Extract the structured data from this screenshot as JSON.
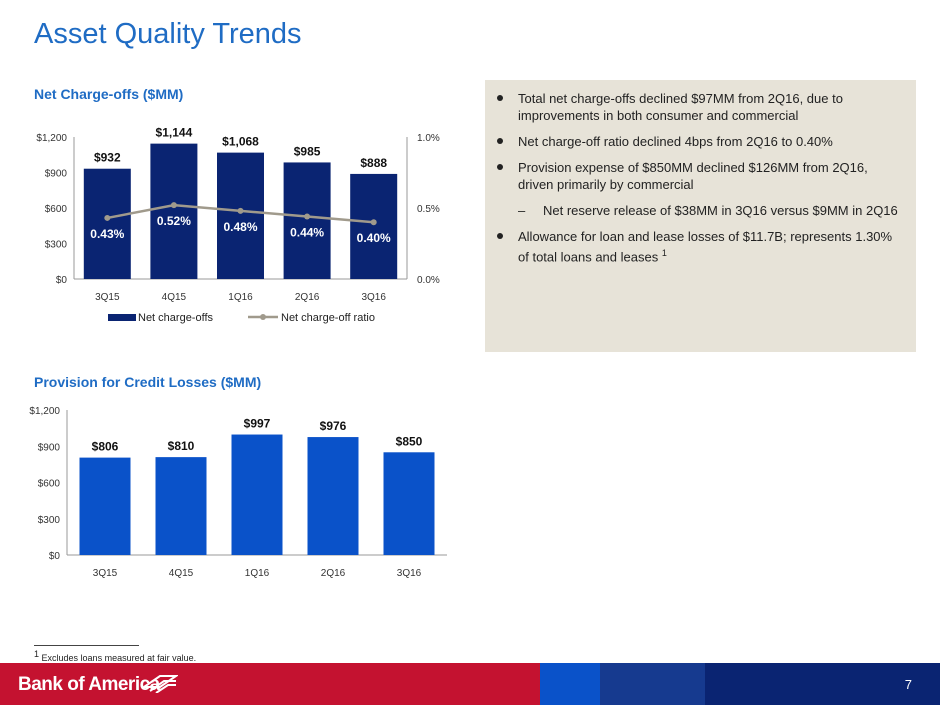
{
  "page": {
    "title": "Asset Quality Trends",
    "page_number": "7"
  },
  "brand": {
    "name": "Bank of America",
    "accent": "#1f6cc4",
    "navy": "#0a2472",
    "blue": "#0a52c9",
    "red": "#c41230",
    "panel": "#e7e3d8"
  },
  "bullets": [
    {
      "text": "Total net charge-offs declined $97MM from 2Q16, due to improvements in both consumer and commercial",
      "level": 1
    },
    {
      "text": "Net charge-off ratio declined 4bps from 2Q16 to 0.40%",
      "level": 1
    },
    {
      "text": "Provision expense of $850MM declined $126MM from 2Q16, driven primarily by commercial",
      "level": 1
    },
    {
      "text": "Net reserve release of $38MM in 3Q16 versus $9MM in 2Q16",
      "level": 2
    },
    {
      "text": "Allowance for loan and lease losses of $11.7B; represents 1.30% of total loans and leases",
      "sup": "1",
      "level": 1
    }
  ],
  "footnote": {
    "marker": "1",
    "text": "Excludes loans measured at fair value."
  },
  "chart_data": [
    {
      "type": "bar",
      "title": "Net Charge-offs ($MM)",
      "categories": [
        "3Q15",
        "4Q15",
        "1Q16",
        "2Q16",
        "3Q16"
      ],
      "series": [
        {
          "name": "Net charge-offs",
          "kind": "bar",
          "axis": "left",
          "values": [
            932,
            1144,
            1068,
            985,
            888
          ],
          "labels": [
            "$932",
            "$1,144",
            "$1,068",
            "$985",
            "$888"
          ],
          "color": "#0a2472"
        },
        {
          "name": "Net charge-off ratio",
          "kind": "line",
          "axis": "right",
          "values": [
            0.43,
            0.52,
            0.48,
            0.44,
            0.4
          ],
          "labels": [
            "0.43%",
            "0.52%",
            "0.48%",
            "0.44%",
            "0.40%"
          ],
          "color": "#a09a8c"
        }
      ],
      "ylim": [
        0,
        1200
      ],
      "yticks": [
        "$0",
        "$300",
        "$600",
        "$900",
        "$1,200"
      ],
      "y2lim": [
        0,
        1.0
      ],
      "y2ticks": [
        "0.0%",
        "0.5%",
        "1.0%"
      ],
      "legend": "bottom",
      "grid": false
    },
    {
      "type": "bar",
      "title": "Provision for Credit Losses ($MM)",
      "categories": [
        "3Q15",
        "4Q15",
        "1Q16",
        "2Q16",
        "3Q16"
      ],
      "series": [
        {
          "kind": "bar",
          "values": [
            806,
            810,
            997,
            976,
            850
          ],
          "labels": [
            "$806",
            "$810",
            "$997",
            "$976",
            "$850"
          ],
          "color": "#0a52c9"
        }
      ],
      "ylim": [
        0,
        1200
      ],
      "yticks": [
        "$0",
        "$300",
        "$600",
        "$900",
        "$1,200"
      ],
      "grid": false
    }
  ]
}
